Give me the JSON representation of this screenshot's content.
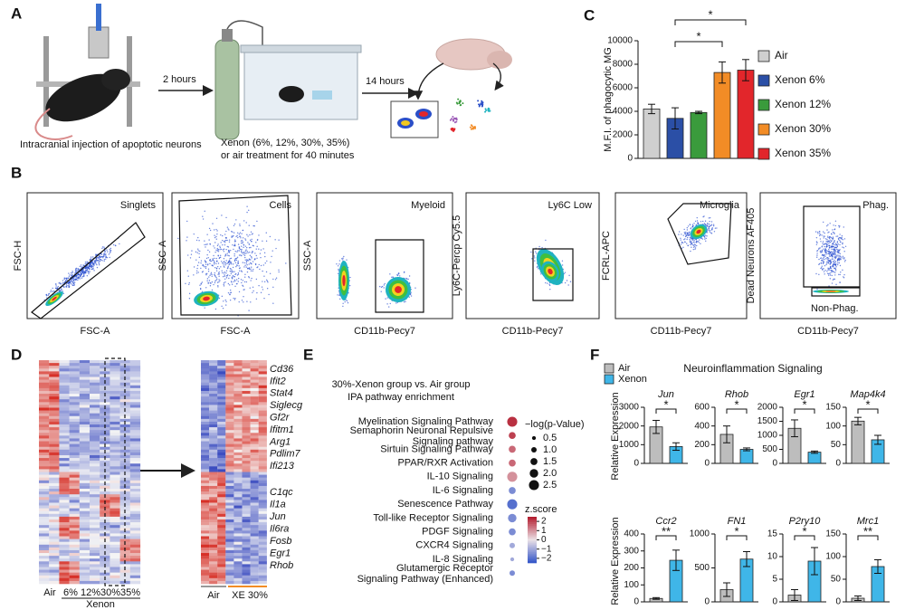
{
  "panel_labels": [
    "A",
    "B",
    "C",
    "D",
    "E",
    "F"
  ],
  "panel_a": {
    "steps": [
      "Intracranial injection of apoptotic neurons",
      "2 hours",
      "Xenon (6%, 12%, 30%, 35%)",
      "or air treatment for 40 minutes",
      "14 hours"
    ]
  },
  "panel_b": {
    "plots": [
      {
        "gate": "Singlets",
        "x_label": "FSC-A",
        "y_label": "FSC-H"
      },
      {
        "gate": "Cells",
        "x_label": "FSC-A",
        "y_label": "SSC-A"
      },
      {
        "gate": "Myeloid",
        "x_label": "CD11b-Pecy7",
        "y_label": "SSC-A"
      },
      {
        "gate": "Ly6C Low",
        "x_label": "CD11b-Pecy7",
        "y_label": "Ly6C-Percp Cy5.5"
      },
      {
        "gate": "Microglia",
        "x_label": "CD11b-Pecy7",
        "y_label": "FCRL-APC"
      },
      {
        "gate": "Phag.",
        "gate_2": "Non-Phag.",
        "x_label": "CD11b-Pecy7",
        "y_label": "Dead Neurons AF405"
      }
    ]
  },
  "panel_d": {
    "groups": [
      "Air",
      "6%",
      "12%",
      "30%",
      "35%"
    ],
    "treatment": "Xenon",
    "zoom_groups": [
      "Air",
      "XE 30%"
    ],
    "genes_up": [
      "Cd36",
      "Ifit2",
      "Stat4",
      "Siglecg",
      "Gf2r",
      "Ifitm1",
      "Arg1",
      "Pdlim7",
      "Ifi213"
    ],
    "genes_down": [
      "C1qc",
      "Il1a",
      "Jun",
      "Il6ra",
      "Fosb",
      "Egr1",
      "Rhob"
    ]
  },
  "panel_f": {
    "title": "Neuroinflammation Signaling",
    "y_label": "Relative Expression",
    "legend": [
      {
        "name": "Air",
        "color": "#bdbdbd"
      },
      {
        "name": "Xenon",
        "color": "#3fb6e8"
      }
    ]
  },
  "chart_data": [
    {
      "type": "bar",
      "y_label": "M.F.I. of phagocytic MG",
      "categories": [
        "Air",
        "Xenon 6%",
        "Xenon 12%",
        "Xenon 30%",
        "Xenon 35%"
      ],
      "values": [
        4200,
        3400,
        3900,
        7300,
        7500
      ],
      "errors": [
        400,
        900,
        100,
        900,
        900
      ],
      "colors": [
        "#cfcfcf",
        "#2b4fa6",
        "#3a9b3c",
        "#f28c26",
        "#e2262b"
      ],
      "ylim": [
        0,
        10000
      ],
      "yticks": [
        0,
        2000,
        4000,
        6000,
        8000,
        10000
      ],
      "annotations": [
        {
          "from": 1,
          "to": 4,
          "label": "*"
        },
        {
          "from": 1,
          "to": 3,
          "label": "*"
        }
      ]
    },
    {
      "type": "dot",
      "title": [
        "30%-Xenon group vs. Air group",
        "IPA pathway enrichment"
      ],
      "categories": [
        "Myelination Signaling Pathway",
        [
          "Semaphorin Neuronal Repulsive",
          "Signaling pathway"
        ],
        "Sirtuin Signaling Pathway",
        "PPAR/RXR Activation",
        "IL-10 Signaling",
        "IL-6 Signaling",
        "Senescence Pathway",
        "Toll-like Receptor Signaling",
        "PDGF Signaling",
        "CXCR4 Signaling",
        "IL-8 Signaling",
        [
          "Glutamergic Receptor",
          "Signaling Pathway (Enhanced)"
        ]
      ],
      "values": [
        2.5,
        1.5,
        1.5,
        1.5,
        2.5,
        1.5,
        2.5,
        2.0,
        1.5,
        1.0,
        0.5,
        1.0
      ],
      "z_scores": [
        2.2,
        2,
        1.5,
        1.5,
        1,
        -1.5,
        -2,
        -1.5,
        -1.5,
        -1,
        -1,
        -1.5
      ],
      "size_label": "−log(p-Value)",
      "size_ticks": [
        0.5,
        {
          "value": 1,
          "label": "1.0"
        },
        1.5,
        {
          "value": 2,
          "label": "2.0"
        },
        2.5
      ],
      "color_label": "z.score",
      "zlim": [
        -2.5,
        2.5
      ],
      "zticks": [
        2,
        1,
        0,
        {
          "value": -1,
          "label": "−1"
        },
        {
          "value": -2,
          "label": "−2"
        }
      ]
    },
    {
      "type": "bar",
      "title": "Jun",
      "values": [
        1950,
        900
      ],
      "errors": [
        350,
        200
      ],
      "ylim": [
        0,
        3000
      ],
      "yticks": [
        0,
        1000,
        2000,
        3000
      ],
      "annotation": "*"
    },
    {
      "type": "bar",
      "title": "Rhob",
      "values": [
        310,
        150
      ],
      "errors": [
        90,
        15
      ],
      "ylim": [
        0,
        600
      ],
      "yticks": [
        0,
        200,
        400,
        600
      ],
      "annotation": "*"
    },
    {
      "type": "bar",
      "title": "Egr1",
      "values": [
        1250,
        400
      ],
      "errors": [
        300,
        40
      ],
      "ylim": [
        0,
        2000
      ],
      "yticks": [
        0,
        500,
        1000,
        1500,
        2000
      ],
      "annotation": "*"
    },
    {
      "type": "bar",
      "title": "Map4k4",
      "values": [
        113,
        63
      ],
      "errors": [
        10,
        12
      ],
      "ylim": [
        0,
        150
      ],
      "yticks": [
        0,
        50,
        100,
        150
      ],
      "annotation": "*"
    },
    {
      "type": "bar",
      "title": "Ccr2",
      "values": [
        20,
        245
      ],
      "errors": [
        5,
        60
      ],
      "ylim": [
        0,
        400
      ],
      "yticks": [
        0,
        100,
        200,
        300,
        400
      ],
      "annotation": "**"
    },
    {
      "type": "bar",
      "title": "FN1",
      "values": [
        180,
        630
      ],
      "errors": [
        100,
        110
      ],
      "ylim": [
        0,
        1000
      ],
      "yticks": [
        0,
        500,
        1000
      ],
      "annotation": "*"
    },
    {
      "type": "bar",
      "title": "P2ry10",
      "values": [
        1.5,
        9
      ],
      "errors": [
        1.2,
        3
      ],
      "ylim": [
        0,
        15
      ],
      "yticks": [
        0,
        5,
        10,
        15
      ],
      "annotation": "*"
    },
    {
      "type": "bar",
      "title": "Mrc1",
      "values": [
        8,
        78
      ],
      "errors": [
        5,
        15
      ],
      "ylim": [
        0,
        150
      ],
      "yticks": [
        0,
        50,
        100,
        150
      ],
      "annotation": "**"
    }
  ]
}
